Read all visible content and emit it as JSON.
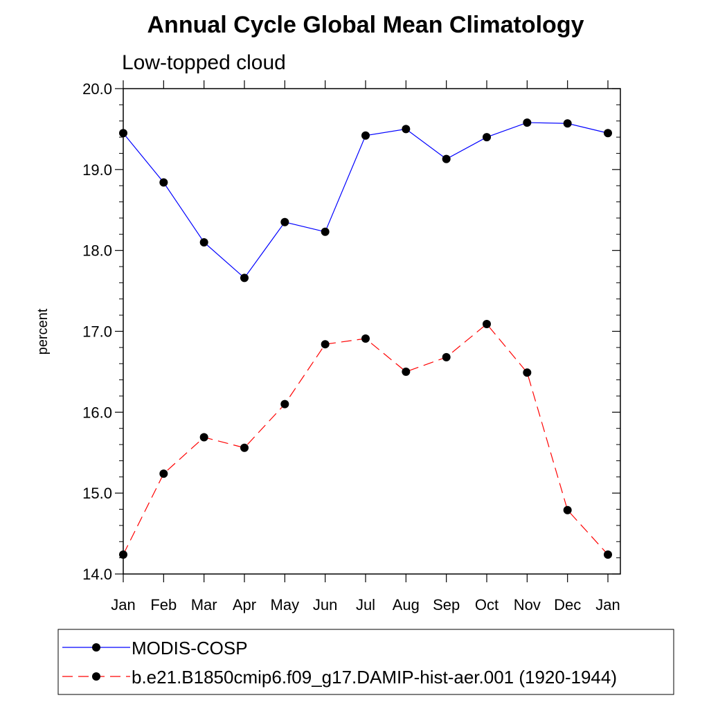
{
  "chart_data": {
    "type": "line",
    "title": "Annual Cycle Global Mean Climatology",
    "subtitle": "Low-topped cloud",
    "xlabel": "",
    "ylabel": "percent",
    "ylim": [
      14.0,
      20.0
    ],
    "yticks": [
      "14.0",
      "15.0",
      "16.0",
      "17.0",
      "18.0",
      "19.0",
      "20.0"
    ],
    "categories": [
      "Jan",
      "Feb",
      "Mar",
      "Apr",
      "May",
      "Jun",
      "Jul",
      "Aug",
      "Sep",
      "Oct",
      "Nov",
      "Dec",
      "Jan"
    ],
    "series": [
      {
        "name": "MODIS-COSP",
        "color": "#0000ff",
        "line_style": "solid",
        "marker": "filled-circle",
        "values": [
          19.45,
          18.84,
          18.1,
          17.66,
          18.35,
          18.23,
          19.42,
          19.5,
          19.13,
          19.4,
          19.58,
          19.57,
          19.45
        ]
      },
      {
        "name": "b.e21.B1850cmip6.f09_g17.DAMIP-hist-aer.001 (1920-1944)",
        "color": "#ff0000",
        "line_style": "dashed",
        "marker": "filled-circle",
        "values": [
          14.24,
          15.24,
          15.69,
          15.56,
          16.1,
          16.84,
          16.91,
          16.5,
          16.68,
          17.09,
          16.49,
          14.79,
          14.24
        ]
      }
    ],
    "grid": false,
    "legend_position": "bottom"
  }
}
